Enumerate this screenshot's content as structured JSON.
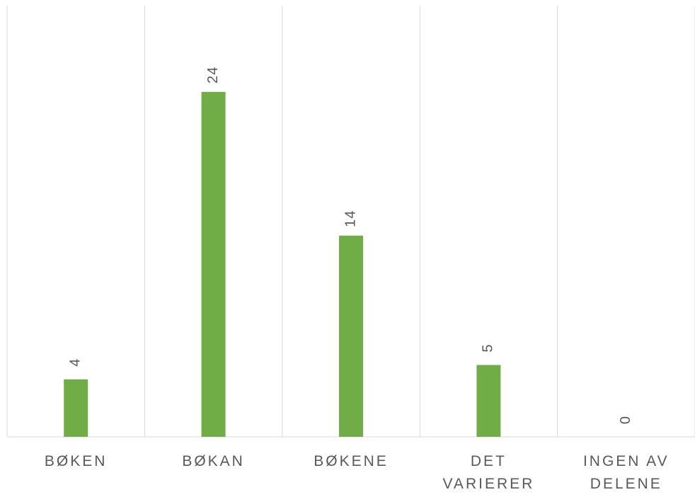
{
  "chart_data": {
    "type": "bar",
    "categories": [
      "BØKEN",
      "BØKAN",
      "BØKENE",
      "DET\nVARIERER",
      "INGEN AV\nDELENE"
    ],
    "values": [
      4,
      24,
      14,
      5,
      0
    ],
    "color": "#70ad47",
    "ylim": [
      0,
      30
    ]
  }
}
